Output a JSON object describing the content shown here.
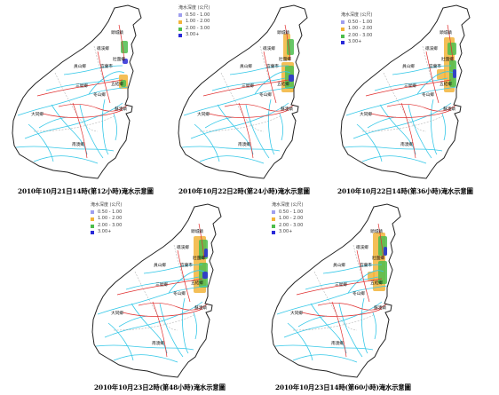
{
  "legend": {
    "title": "淹水深度 (公尺)",
    "items": [
      {
        "label": "0.50 - 1.00",
        "color": "#9f9fef"
      },
      {
        "label": "1.00 - 2.00",
        "color": "#f2b43a"
      },
      {
        "label": "2.00 - 3.00",
        "color": "#4dbd4d"
      },
      {
        "label": "3.00+",
        "color": "#2a2ad8"
      }
    ]
  },
  "towns": {
    "toucheng": "頭城鎮",
    "jiaoxi": "礁溪鄉",
    "yuanshan": "員山鄉",
    "yilan": "宜蘭市",
    "zhuangwei": "壯圍鄉",
    "wujie": "五結鄉",
    "sanxing": "三星鄉",
    "dongshan": "冬山鄉",
    "suao": "蘇澳鎮",
    "datong": "大同鄉",
    "nanao": "南澳鄉"
  },
  "panels": [
    {
      "caption": "2010年10月21日14時(第12小時)淹水示意圖"
    },
    {
      "caption": "2010年10月22日2時(第24小時)淹水示意圖"
    },
    {
      "caption": "2010年10月22日14時(第36小時)淹水示意圖"
    },
    {
      "caption": "2010年10月23日2時(第48小時)淹水示意圖"
    },
    {
      "caption": "2010年10月23日14時(第60小時)淹水示意圖"
    }
  ],
  "colors": {
    "river": "#35c8e8",
    "road": "#e03030",
    "boundary": "#222222"
  }
}
